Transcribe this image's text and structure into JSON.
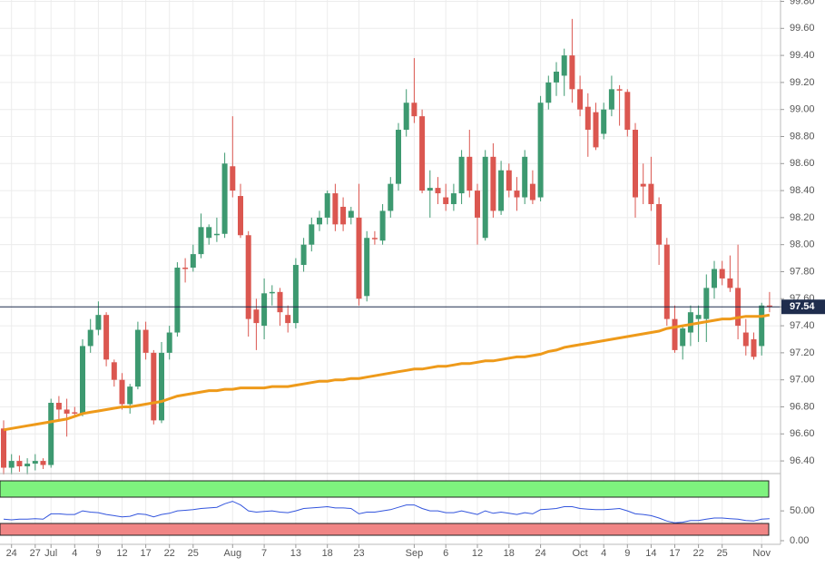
{
  "chart_data": {
    "type": "candlestick",
    "up_color": "#3d9970",
    "down_color": "#db5750",
    "open": [
      96.64,
      96.35,
      96.4,
      96.36,
      96.38,
      96.4,
      96.37,
      96.83,
      96.78,
      96.76,
      96.75,
      97.25,
      97.37,
      97.48,
      97.13,
      97.0,
      96.82,
      96.95,
      97.37,
      97.2,
      96.7,
      97.2,
      97.35,
      97.83,
      97.83,
      97.93,
      98.05,
      98.07,
      98.08,
      98.58,
      98.36,
      98.07,
      97.52,
      97.4,
      97.64,
      97.65,
      97.48,
      97.42,
      97.85,
      98.0,
      98.15,
      98.2,
      98.38,
      98.28,
      98.2,
      98.2,
      97.62,
      98.05,
      98.03,
      98.25,
      98.45,
      98.85,
      99.05,
      98.95,
      98.4,
      98.42,
      98.35,
      98.3,
      98.38,
      98.65,
      98.4,
      98.05,
      98.65,
      98.25,
      98.55,
      98.4,
      98.35,
      98.45,
      98.35,
      99.05,
      99.2,
      99.25,
      99.4,
      99.15,
      99.02,
      98.98,
      98.82,
      99.0,
      99.15,
      99.13,
      98.85,
      98.45,
      98.45,
      98.3,
      98.0,
      97.45,
      97.25,
      97.35,
      97.45,
      97.45,
      97.68,
      97.82,
      97.75,
      97.68,
      97.35,
      97.3,
      97.25,
      97.55
    ],
    "high": [
      96.7,
      96.45,
      96.44,
      96.42,
      96.45,
      96.42,
      96.86,
      96.88,
      96.86,
      96.8,
      97.3,
      97.45,
      97.58,
      97.5,
      97.15,
      97.05,
      96.97,
      97.43,
      97.43,
      97.22,
      97.28,
      97.4,
      97.87,
      97.9,
      98.0,
      98.23,
      98.15,
      98.2,
      98.68,
      98.95,
      98.45,
      98.1,
      97.6,
      97.75,
      97.7,
      97.68,
      97.55,
      97.9,
      98.05,
      98.2,
      98.25,
      98.4,
      98.45,
      98.35,
      98.28,
      98.45,
      98.1,
      98.1,
      98.3,
      98.5,
      98.9,
      99.15,
      99.38,
      99.0,
      98.55,
      98.5,
      98.45,
      98.45,
      98.7,
      98.85,
      98.45,
      98.7,
      98.75,
      98.62,
      98.6,
      98.5,
      98.7,
      98.55,
      99.1,
      99.25,
      99.35,
      99.45,
      99.67,
      99.25,
      99.12,
      99.05,
      99.05,
      99.25,
      99.18,
      99.15,
      98.9,
      98.6,
      98.65,
      98.35,
      98.05,
      97.55,
      97.4,
      97.55,
      97.55,
      97.78,
      97.88,
      97.88,
      97.92,
      98.0,
      97.45,
      97.35,
      97.57,
      97.65
    ],
    "low": [
      96.3,
      96.3,
      96.32,
      96.3,
      96.33,
      96.34,
      96.35,
      96.7,
      96.58,
      96.72,
      96.73,
      97.2,
      97.33,
      97.1,
      96.95,
      96.78,
      96.75,
      96.93,
      97.15,
      96.67,
      96.68,
      97.15,
      97.32,
      97.72,
      97.8,
      97.9,
      98.0,
      98.02,
      98.05,
      98.35,
      98.05,
      97.32,
      97.22,
      97.3,
      97.55,
      97.4,
      97.35,
      97.38,
      97.8,
      97.95,
      98.1,
      98.15,
      98.1,
      98.1,
      98.15,
      97.55,
      97.58,
      98.0,
      98.0,
      98.2,
      98.4,
      98.8,
      98.9,
      98.38,
      98.2,
      98.3,
      98.25,
      98.25,
      98.3,
      98.35,
      98.0,
      98.03,
      98.2,
      98.22,
      98.35,
      98.25,
      98.3,
      98.3,
      98.32,
      99.0,
      99.1,
      99.1,
      99.05,
      98.95,
      98.65,
      98.7,
      98.78,
      98.95,
      98.88,
      98.8,
      98.2,
      98.3,
      98.25,
      97.85,
      97.4,
      97.2,
      97.15,
      97.25,
      97.28,
      97.28,
      97.6,
      97.7,
      97.65,
      97.3,
      97.18,
      97.15,
      97.18,
      97.5
    ],
    "close": [
      96.35,
      96.4,
      96.36,
      96.38,
      96.4,
      96.37,
      96.83,
      96.78,
      96.75,
      96.75,
      97.25,
      97.37,
      97.48,
      97.15,
      97.0,
      96.82,
      96.95,
      97.37,
      97.2,
      96.7,
      97.2,
      97.35,
      97.83,
      97.82,
      97.93,
      98.13,
      98.13,
      98.08,
      98.6,
      98.4,
      98.07,
      97.45,
      97.42,
      97.64,
      97.65,
      97.5,
      97.42,
      97.85,
      98.0,
      98.15,
      98.2,
      98.38,
      98.15,
      98.15,
      98.25,
      97.6,
      98.05,
      98.04,
      98.25,
      98.45,
      98.85,
      99.05,
      98.95,
      98.4,
      98.42,
      98.38,
      98.3,
      98.38,
      98.65,
      98.4,
      98.2,
      98.65,
      98.25,
      98.55,
      98.4,
      98.35,
      98.65,
      98.33,
      99.05,
      99.2,
      99.28,
      99.4,
      99.15,
      99.0,
      98.85,
      98.72,
      99.0,
      99.15,
      99.14,
      98.85,
      98.35,
      98.43,
      98.3,
      98.0,
      97.45,
      97.22,
      97.38,
      97.5,
      97.48,
      97.68,
      97.82,
      97.75,
      97.68,
      97.4,
      97.25,
      97.17,
      97.55,
      97.54
    ],
    "ma": {
      "color": "#ee9a1a",
      "values": [
        96.63,
        96.64,
        96.65,
        96.66,
        96.67,
        96.68,
        96.69,
        96.7,
        96.71,
        96.73,
        96.75,
        96.76,
        96.77,
        96.78,
        96.79,
        96.8,
        96.8,
        96.81,
        96.82,
        96.83,
        96.84,
        96.86,
        96.88,
        96.89,
        96.9,
        96.91,
        96.92,
        96.92,
        96.93,
        96.93,
        96.94,
        96.94,
        96.94,
        96.94,
        96.95,
        96.95,
        96.95,
        96.96,
        96.97,
        96.98,
        96.99,
        96.99,
        97.0,
        97.0,
        97.01,
        97.01,
        97.02,
        97.03,
        97.04,
        97.05,
        97.06,
        97.07,
        97.08,
        97.08,
        97.09,
        97.1,
        97.1,
        97.11,
        97.12,
        97.12,
        97.13,
        97.14,
        97.14,
        97.15,
        97.16,
        97.17,
        97.17,
        97.18,
        97.19,
        97.21,
        97.22,
        97.24,
        97.25,
        97.26,
        97.27,
        97.28,
        97.29,
        97.3,
        97.31,
        97.32,
        97.33,
        97.34,
        97.35,
        97.36,
        97.38,
        97.39,
        97.4,
        97.41,
        97.42,
        97.43,
        97.44,
        97.45,
        97.45,
        97.46,
        97.47,
        97.47,
        97.47,
        97.48
      ]
    },
    "last_price": 97.54,
    "last_price_color": "#1f2d4d",
    "ylim": [
      96.32,
      99.81
    ],
    "yticks": [
      {
        "value": 96.4,
        "label": "96.40"
      },
      {
        "value": 96.6,
        "label": "96.60"
      },
      {
        "value": 96.8,
        "label": "96.80"
      },
      {
        "value": 97.0,
        "label": "97.00"
      },
      {
        "value": 97.2,
        "label": "97.20"
      },
      {
        "value": 97.4,
        "label": "97.40"
      },
      {
        "value": 97.6,
        "label": "97.60"
      },
      {
        "value": 97.8,
        "label": "97.80"
      },
      {
        "value": 98.0,
        "label": "98.00"
      },
      {
        "value": 98.2,
        "label": "98.20"
      },
      {
        "value": 98.4,
        "label": "98.40"
      },
      {
        "value": 98.6,
        "label": "98.60"
      },
      {
        "value": 98.8,
        "label": "98.80"
      },
      {
        "value": 99.0,
        "label": "99.00"
      },
      {
        "value": 99.2,
        "label": "99.20"
      },
      {
        "value": 99.4,
        "label": "99.40"
      },
      {
        "value": 99.6,
        "label": "99.60"
      },
      {
        "value": 99.8,
        "label": "99.80"
      }
    ],
    "xticks": [
      {
        "value": 1,
        "label": "24"
      },
      {
        "value": 4,
        "label": "27"
      },
      {
        "value": 6,
        "label": "Jul"
      },
      {
        "value": 9,
        "label": "4"
      },
      {
        "value": 12,
        "label": "9"
      },
      {
        "value": 15,
        "label": "12"
      },
      {
        "value": 18,
        "label": "17"
      },
      {
        "value": 21,
        "label": "22"
      },
      {
        "value": 24,
        "label": "25"
      },
      {
        "value": 29,
        "label": "Aug"
      },
      {
        "value": 33,
        "label": "7"
      },
      {
        "value": 37,
        "label": "13"
      },
      {
        "value": 41,
        "label": "18"
      },
      {
        "value": 45,
        "label": "23"
      },
      {
        "value": 52,
        "label": "Sep"
      },
      {
        "value": 56,
        "label": "6"
      },
      {
        "value": 60,
        "label": "12"
      },
      {
        "value": 64,
        "label": "18"
      },
      {
        "value": 68,
        "label": "24"
      },
      {
        "value": 73,
        "label": "Oct"
      },
      {
        "value": 76,
        "label": "4"
      },
      {
        "value": 79,
        "label": "9"
      },
      {
        "value": 82,
        "label": "14"
      },
      {
        "value": 85,
        "label": "17"
      },
      {
        "value": 88,
        "label": "22"
      },
      {
        "value": 91,
        "label": "25"
      },
      {
        "value": 96,
        "label": "Nov"
      }
    ],
    "grid": true,
    "indicator": {
      "color": "#3355dd",
      "values": [
        36,
        35,
        36,
        36,
        37,
        36,
        45,
        45,
        44,
        44,
        50,
        48,
        47,
        44,
        42,
        40,
        41,
        45,
        44,
        40,
        44,
        46,
        50,
        51,
        52,
        54,
        55,
        56,
        62,
        66,
        60,
        50,
        48,
        49,
        50,
        48,
        47,
        50,
        54,
        55,
        56,
        57,
        55,
        55,
        54,
        45,
        48,
        48,
        50,
        52,
        56,
        60,
        60,
        54,
        50,
        50,
        47,
        47,
        50,
        47,
        44,
        50,
        46,
        48,
        46,
        44,
        47,
        45,
        52,
        53,
        54,
        57,
        57,
        54,
        53,
        52,
        52,
        53,
        54,
        50,
        45,
        44,
        42,
        38,
        33,
        30,
        31,
        34,
        34,
        36,
        38,
        38,
        37,
        36,
        34,
        33,
        36,
        37
      ],
      "ylim": [
        0,
        105
      ],
      "yticks": [
        {
          "value": 50,
          "label": "50.00"
        },
        {
          "value": 0,
          "label": "0.00"
        }
      ]
    }
  }
}
